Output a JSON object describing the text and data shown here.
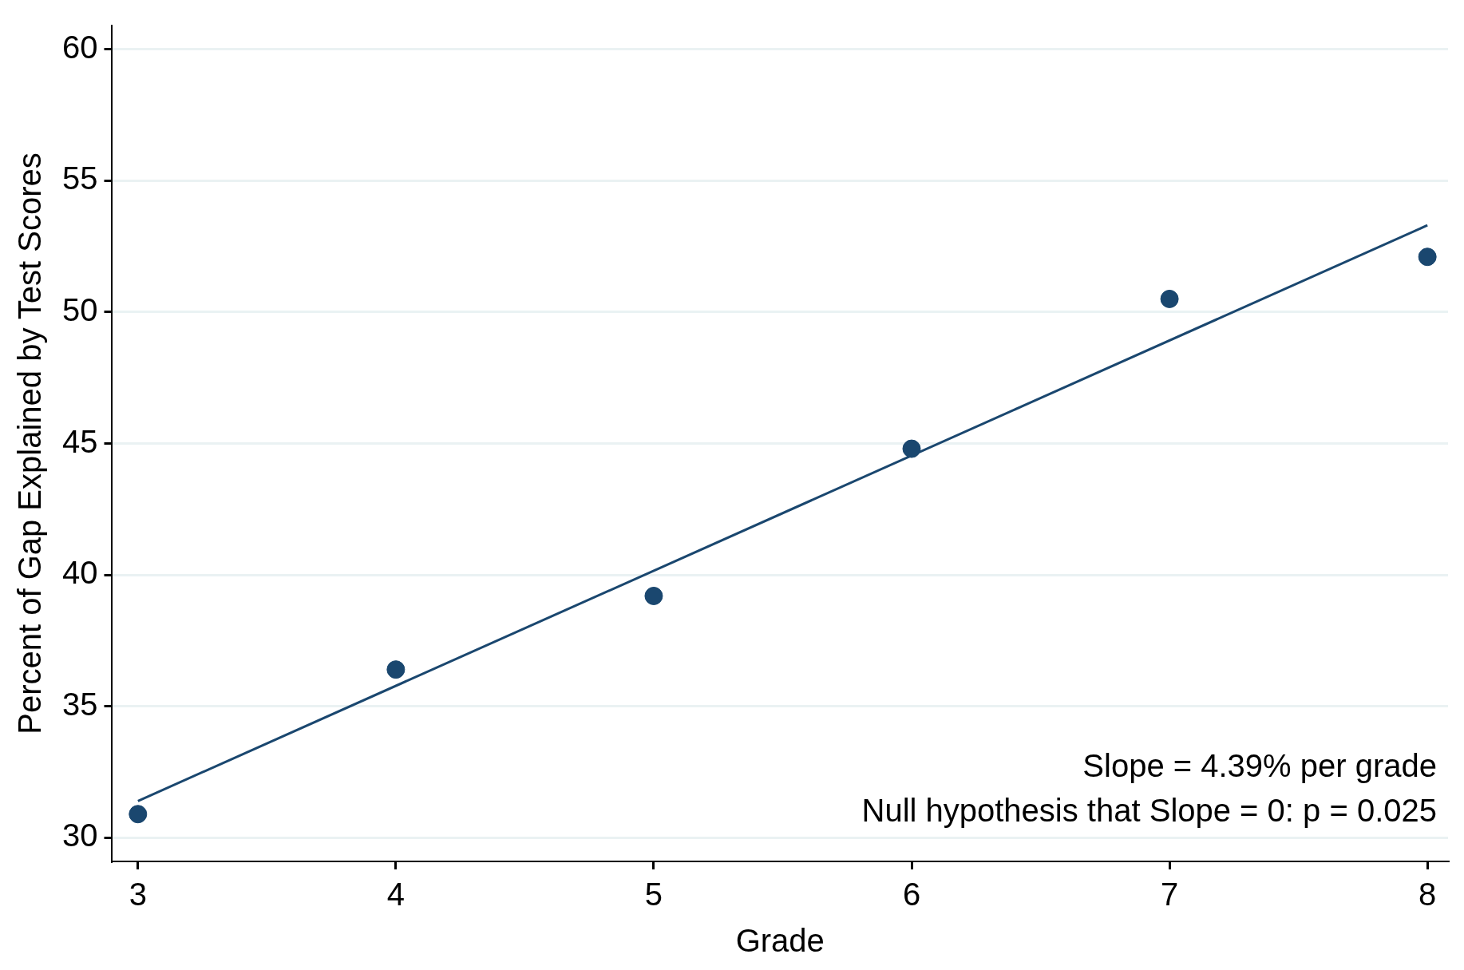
{
  "chart_data": {
    "type": "scatter",
    "xlabel": "Grade",
    "ylabel": "Percent of Gap Explained by Test Scores",
    "x": [
      3,
      4,
      5,
      6,
      7,
      8
    ],
    "series": [
      {
        "type": "scatter",
        "color": "#1a476f",
        "values": [
          30.9,
          36.4,
          39.2,
          44.8,
          50.5,
          52.1
        ]
      },
      {
        "type": "line",
        "color": "#1a476f",
        "marker": "none",
        "x": [
          3,
          8
        ],
        "values": [
          31.4,
          53.3
        ]
      }
    ],
    "xlim": [
      2.9,
      8.08
    ],
    "xticks": [
      3,
      4,
      5,
      6,
      7,
      8
    ],
    "ylim": [
      29.1,
      60.9
    ],
    "yticks": [
      30,
      35,
      40,
      45,
      50,
      55,
      60
    ],
    "grid": "y",
    "legend": false,
    "marker": "circle",
    "annotations": [
      "Slope = 4.39% per grade",
      "Null hypothesis that Slope = 0: p = 0.025"
    ]
  }
}
